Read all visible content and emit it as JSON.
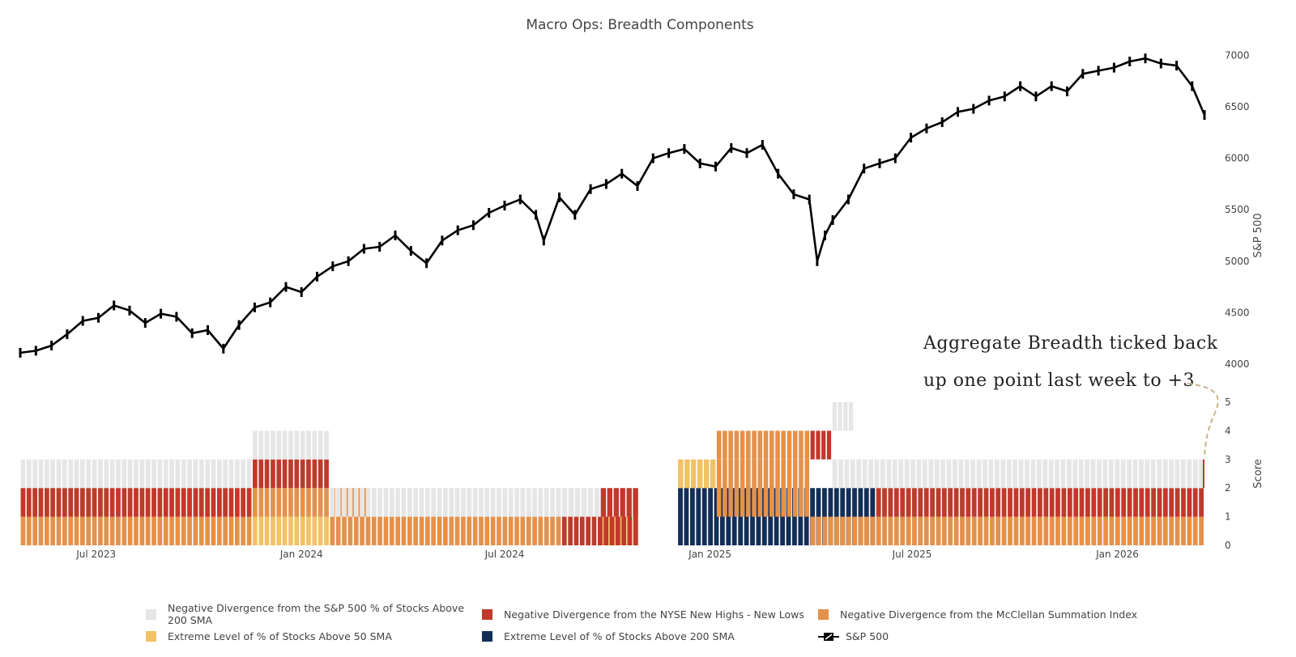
{
  "chart_data": {
    "title": "Macro Ops: Breadth Components",
    "type": "line+stacked-bar",
    "x_tick_labels": [
      "Jul 2023",
      "Jan 2024",
      "Jul 2024",
      "Jan 2025",
      "Jul 2025",
      "Jan 2026"
    ],
    "x_tick_dates": [
      "2023-07-01",
      "2024-01-01",
      "2024-07-01",
      "2025-01-01",
      "2025-07-01",
      "2026-01-01"
    ],
    "x_range": [
      "2023-04-24",
      "2026-03-20"
    ],
    "sp500_axis": {
      "label": "S&P 500",
      "ticks": [
        4000,
        4500,
        5000,
        5500,
        6000,
        6500,
        7000
      ],
      "range": [
        4000,
        7050
      ]
    },
    "score_axis": {
      "label": "Score",
      "ticks": [
        0,
        1,
        2,
        3,
        4,
        5
      ],
      "range": [
        0,
        5
      ]
    },
    "sp500": {
      "name": "S&P 500",
      "dates": [
        "2023-04-24",
        "2023-05-08",
        "2023-05-22",
        "2023-06-05",
        "2023-06-19",
        "2023-07-03",
        "2023-07-17",
        "2023-07-31",
        "2023-08-14",
        "2023-08-28",
        "2023-09-11",
        "2023-09-25",
        "2023-10-09",
        "2023-10-23",
        "2023-11-06",
        "2023-11-20",
        "2023-12-04",
        "2023-12-18",
        "2024-01-01",
        "2024-01-15",
        "2024-01-29",
        "2024-02-12",
        "2024-02-26",
        "2024-03-11",
        "2024-03-25",
        "2024-04-08",
        "2024-04-22",
        "2024-05-06",
        "2024-05-20",
        "2024-06-03",
        "2024-06-17",
        "2024-07-01",
        "2024-07-15",
        "2024-07-29",
        "2024-08-05",
        "2024-08-19",
        "2024-09-02",
        "2024-09-16",
        "2024-09-30",
        "2024-10-14",
        "2024-10-28",
        "2024-11-11",
        "2024-11-25",
        "2024-12-09",
        "2024-12-23",
        "2025-01-06",
        "2025-01-20",
        "2025-02-03",
        "2025-02-17",
        "2025-03-03",
        "2025-03-17",
        "2025-03-31",
        "2025-04-07",
        "2025-04-14",
        "2025-04-21",
        "2025-05-05",
        "2025-05-19",
        "2025-06-02",
        "2025-06-16",
        "2025-06-30",
        "2025-07-14",
        "2025-07-28",
        "2025-08-11",
        "2025-08-25",
        "2025-09-08",
        "2025-09-22",
        "2025-10-06",
        "2025-10-20",
        "2025-11-03",
        "2025-11-17",
        "2025-12-01",
        "2025-12-15",
        "2025-12-29",
        "2026-01-12",
        "2026-01-26",
        "2026-02-09",
        "2026-02-23",
        "2026-03-09",
        "2026-03-20"
      ],
      "values": [
        4110,
        4130,
        4180,
        4290,
        4420,
        4450,
        4570,
        4520,
        4400,
        4490,
        4460,
        4300,
        4330,
        4150,
        4380,
        4550,
        4600,
        4750,
        4700,
        4850,
        4950,
        5000,
        5120,
        5140,
        5250,
        5100,
        4980,
        5200,
        5300,
        5350,
        5470,
        5540,
        5600,
        5450,
        5200,
        5620,
        5450,
        5700,
        5750,
        5850,
        5730,
        6000,
        6050,
        6090,
        5950,
        5920,
        6100,
        6050,
        6130,
        5850,
        5650,
        5600,
        5000,
        5250,
        5400,
        5600,
        5900,
        5950,
        6000,
        6200,
        6290,
        6350,
        6450,
        6480,
        6560,
        6600,
        6700,
        6600,
        6700,
        6650,
        6820,
        6850,
        6880,
        6940,
        6970,
        6920,
        6900,
        6700,
        6420
      ]
    },
    "bar_segments": [
      {
        "name": "Extreme Level of % of Stocks Above 200 SMA",
        "color": "#132e57",
        "runs": [
          [
            17,
            22,
            0,
            2
          ]
        ]
      },
      {
        "name": "Extreme Level of % of Stocks Above 50 SMA",
        "color": "#f2c264",
        "runs": [
          [
            6,
            8,
            0,
            1
          ],
          [
            15,
            16,
            0,
            1
          ],
          [
            17,
            18,
            2,
            3
          ]
        ]
      },
      {
        "name": "Negative Divergence from the McClellan Summation Index",
        "color": "#e5914a",
        "runs": [
          [
            0,
            6,
            0,
            1
          ],
          [
            0,
            6,
            1,
            2
          ],
          [
            6,
            8,
            1,
            2
          ],
          [
            8,
            14,
            0,
            1
          ],
          [
            8,
            9,
            1,
            2
          ],
          [
            19,
            37,
            0,
            1
          ],
          [
            18,
            19,
            1,
            2
          ],
          [
            18,
            19,
            2,
            3
          ],
          [
            18,
            19,
            3,
            4
          ]
        ]
      },
      {
        "name": "Negative Divergence from the NYSE New Highs - New Lows",
        "color": "#c0392b",
        "runs": [
          [
            0,
            6,
            1,
            2
          ],
          [
            6,
            8,
            2,
            3
          ],
          [
            14,
            16,
            0,
            1
          ],
          [
            15,
            16,
            1,
            2
          ],
          [
            22,
            37,
            1,
            2
          ],
          [
            19,
            20,
            3,
            4
          ]
        ]
      },
      {
        "name": "Negative Divergence from the S&P 500 % of Stocks Above 200 SMA",
        "color": "#e6e6e6",
        "runs": [
          [
            0,
            6,
            2,
            3
          ],
          [
            6,
            8,
            3,
            4
          ],
          [
            8,
            14,
            1,
            2
          ],
          [
            14,
            15,
            1,
            2
          ],
          [
            20,
            37,
            2,
            3
          ],
          [
            20,
            21,
            4,
            5
          ]
        ]
      }
    ],
    "annotation": {
      "line1": "Aggregate Breadth ticked back",
      "line2": "up one point last week to +3"
    }
  },
  "legend": [
    {
      "label": "Negative Divergence from the S&P 500 % of Stocks Above 200 SMA",
      "color": "#e6e6e6",
      "icon": "square"
    },
    {
      "label": "Negative Divergence from the NYSE New Highs - New Lows",
      "color": "#c0392b",
      "icon": "square"
    },
    {
      "label": "Negative Divergence from the McClellan Summation Index",
      "color": "#e5914a",
      "icon": "square"
    },
    {
      "label": "Extreme Level of % of Stocks Above 50 SMA",
      "color": "#f2c264",
      "icon": "square"
    },
    {
      "label": "Extreme Level of % of Stocks Above 200 SMA",
      "color": "#132e57",
      "icon": "square"
    },
    {
      "label": "S&P 500",
      "color": "#000000",
      "icon": "candlestick-line"
    }
  ]
}
